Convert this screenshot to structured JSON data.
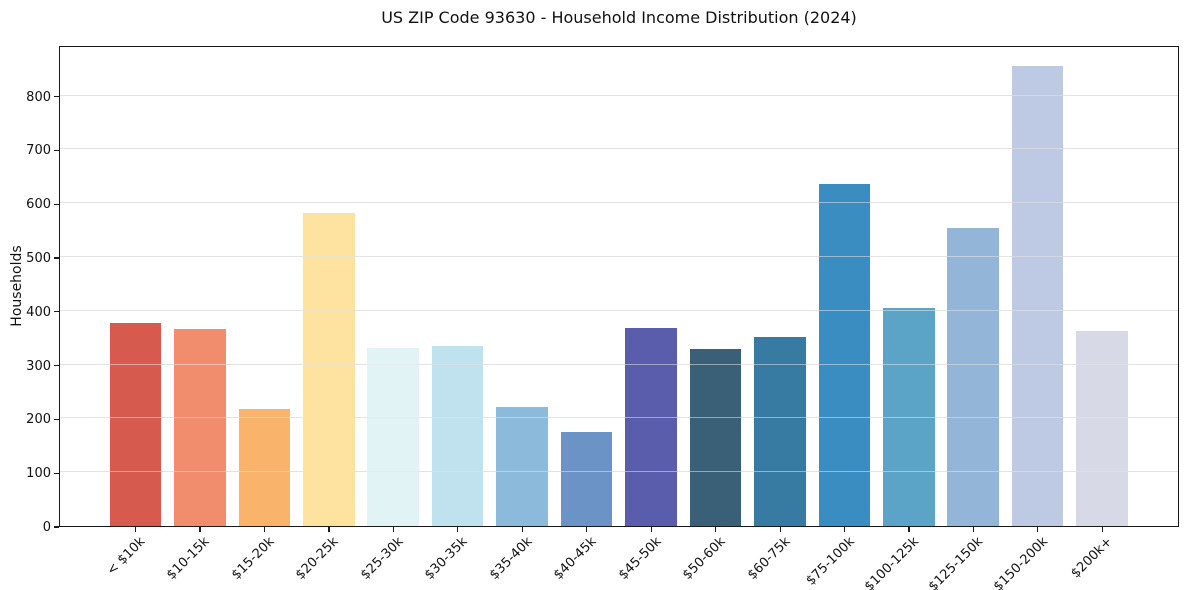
{
  "chart_data": {
    "type": "bar",
    "title": "US ZIP Code 93630 - Household Income Distribution (2024)",
    "xlabel": "",
    "ylabel": "Households",
    "categories": [
      "< $10k",
      "$10-15k",
      "$15-20k",
      "$20-25k",
      "$25-30k",
      "$30-35k",
      "$35-40k",
      "$40-45k",
      "$45-50k",
      "$50-60k",
      "$60-75k",
      "$75-100k",
      "$100-125k",
      "$125-150k",
      "$150-200k",
      "$200k+"
    ],
    "values": [
      377,
      366,
      218,
      581,
      330,
      334,
      222,
      175,
      368,
      329,
      352,
      635,
      406,
      553,
      855,
      363
    ],
    "bar_colors": [
      "#d65b4e",
      "#f18d6d",
      "#fab36a",
      "#fde2a0",
      "#e2f3f6",
      "#c0e1ee",
      "#8cbadb",
      "#6b93c6",
      "#5a5dab",
      "#3a6078",
      "#377ba3",
      "#3a8dc1",
      "#5ca4c7",
      "#93b5d7",
      "#bec9e3",
      "#d8d9e6"
    ],
    "yticks": [
      0,
      100,
      200,
      300,
      400,
      500,
      600,
      700,
      800
    ],
    "ylim": [
      0,
      894
    ],
    "grid": "horizontal",
    "gridline_color": "#e4e4e4",
    "legend": "none"
  }
}
